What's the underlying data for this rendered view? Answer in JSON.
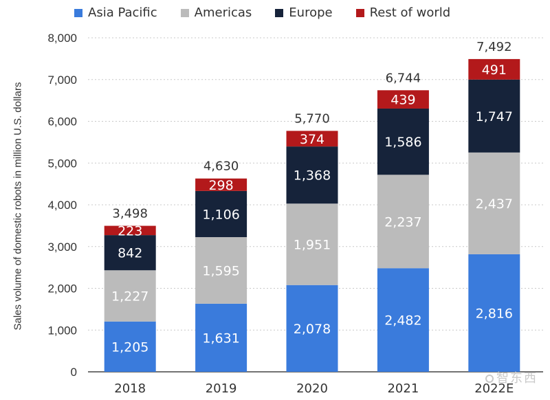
{
  "chart_data": {
    "type": "bar",
    "stacked": true,
    "categories": [
      "2018",
      "2019",
      "2020",
      "2021",
      "2022E"
    ],
    "series": [
      {
        "name": "Asia Pacific",
        "color": "#3a7bdc",
        "values": [
          1205,
          1631,
          2078,
          2482,
          2816
        ],
        "labels": [
          "1,205",
          "1,631",
          "2,078",
          "2,482",
          "2,816"
        ]
      },
      {
        "name": "Americas",
        "color": "#bbbbbb",
        "values": [
          1227,
          1595,
          1951,
          2237,
          2437
        ],
        "labels": [
          "1,227",
          "1,595",
          "1,951",
          "2,237",
          "2,437"
        ]
      },
      {
        "name": "Europe",
        "color": "#16233a",
        "values": [
          842,
          1106,
          1368,
          1586,
          1747
        ],
        "labels": [
          "842",
          "1,106",
          "1,368",
          "1,586",
          "1,747"
        ]
      },
      {
        "name": "Rest of world",
        "color": "#b3191b",
        "values": [
          223,
          298,
          374,
          439,
          491
        ],
        "labels": [
          "223",
          "298",
          "374",
          "439",
          "491"
        ]
      }
    ],
    "totals": [
      3498,
      4630,
      5770,
      6744,
      7492
    ],
    "total_labels": [
      "3,498",
      "4,630",
      "5,770",
      "6,744",
      "7,492"
    ],
    "ylabel": "Sales volume of domestic robots in million U.S. dollars",
    "xlabel": "",
    "ylim": [
      0,
      8000
    ],
    "yticks": [
      0,
      1000,
      2000,
      3000,
      4000,
      5000,
      6000,
      7000,
      8000
    ],
    "ytick_labels": [
      "0",
      "1,000",
      "2,000",
      "3,000",
      "4,000",
      "5,000",
      "6,000",
      "7,000",
      "8,000"
    ],
    "grid": true,
    "legend_position": "top"
  },
  "watermark": "智东西"
}
